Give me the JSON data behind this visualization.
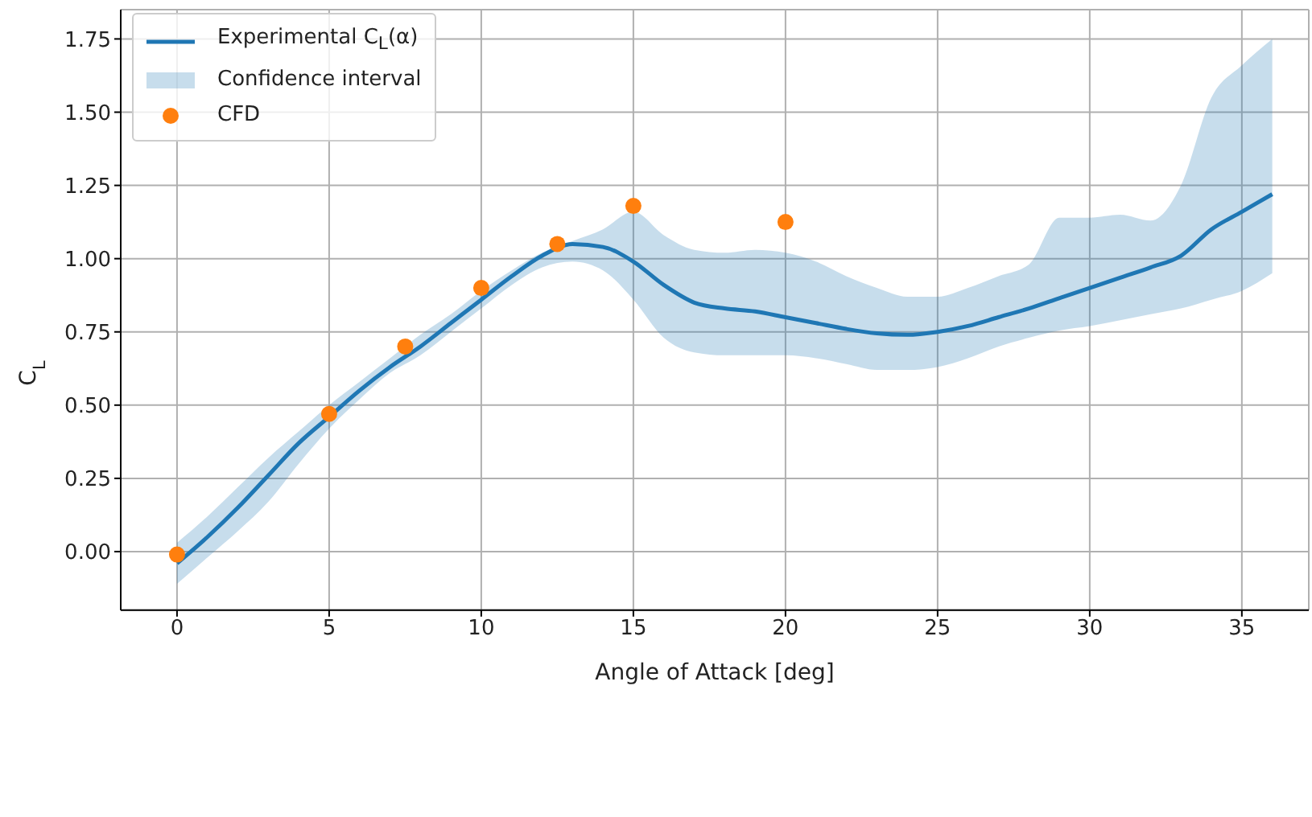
{
  "chart_data": {
    "type": "line",
    "xlabel": "Angle of Attack [deg]",
    "ylabel": "C$_{L}$",
    "xlim": [
      -1.85,
      37.2
    ],
    "ylim": [
      -0.2,
      1.85
    ],
    "xticks": [
      0,
      5,
      10,
      15,
      20,
      25,
      30,
      35
    ],
    "yticks": [
      {
        "value": 0,
        "label": "0.00"
      },
      {
        "value": 0.25,
        "label": "0.25"
      },
      {
        "value": 0.5,
        "label": "0.50"
      },
      {
        "value": 0.75,
        "label": "0.75"
      },
      {
        "value": 1,
        "label": "1.00"
      },
      {
        "value": 1.25,
        "label": "1.25"
      },
      {
        "value": 1.5,
        "label": "1.50"
      },
      {
        "value": 1.75,
        "label": "1.75"
      }
    ],
    "grid": true,
    "legend": "top left",
    "annotations": [
      "Confidence interval"
    ],
    "series": [
      {
        "name": "Experimental C$_{L}$(α)",
        "color": "#1f77b4",
        "x": [
          0,
          1,
          2,
          3,
          4,
          5,
          6,
          7,
          8,
          9,
          10,
          11,
          12,
          13,
          14,
          15,
          16,
          17,
          18,
          19,
          20,
          21,
          22,
          23,
          24,
          25,
          26,
          27,
          28,
          29,
          30,
          31,
          32,
          33,
          34,
          35,
          36
        ],
        "values": [
          -0.04,
          0.05,
          0.15,
          0.26,
          0.37,
          0.46,
          0.55,
          0.63,
          0.7,
          0.78,
          0.86,
          0.94,
          1.01,
          1.05,
          1.04,
          0.99,
          0.91,
          0.85,
          0.83,
          0.82,
          0.8,
          0.78,
          0.76,
          0.745,
          0.74,
          0.75,
          0.77,
          0.8,
          0.83,
          0.865,
          0.9,
          0.935,
          0.97,
          1.01,
          1.1,
          1.16,
          1.22
        ],
        "lower": [
          -0.11,
          -0.02,
          0.07,
          0.17,
          0.3,
          0.42,
          0.52,
          0.61,
          0.67,
          0.75,
          0.83,
          0.91,
          0.97,
          0.99,
          0.96,
          0.86,
          0.73,
          0.68,
          0.67,
          0.67,
          0.67,
          0.66,
          0.64,
          0.62,
          0.62,
          0.63,
          0.66,
          0.7,
          0.73,
          0.755,
          0.77,
          0.79,
          0.81,
          0.83,
          0.86,
          0.89,
          0.95
        ],
        "upper": [
          0.03,
          0.12,
          0.22,
          0.32,
          0.41,
          0.5,
          0.58,
          0.66,
          0.74,
          0.81,
          0.89,
          0.96,
          1.02,
          1.06,
          1.1,
          1.16,
          1.08,
          1.03,
          1.02,
          1.03,
          1.02,
          0.99,
          0.94,
          0.9,
          0.87,
          0.87,
          0.9,
          0.94,
          0.98,
          1.14,
          1.14,
          1.15,
          1.13,
          1.25,
          1.55,
          1.66,
          1.75
        ]
      },
      {
        "type": "scatter",
        "name": "CFD",
        "color": "#ff7f0e",
        "marker": "circle",
        "x": [
          0,
          5,
          7.5,
          10,
          12.5,
          15,
          20
        ],
        "values": [
          -0.01,
          0.47,
          0.7,
          0.9,
          1.05,
          1.18,
          1.125
        ]
      }
    ]
  }
}
